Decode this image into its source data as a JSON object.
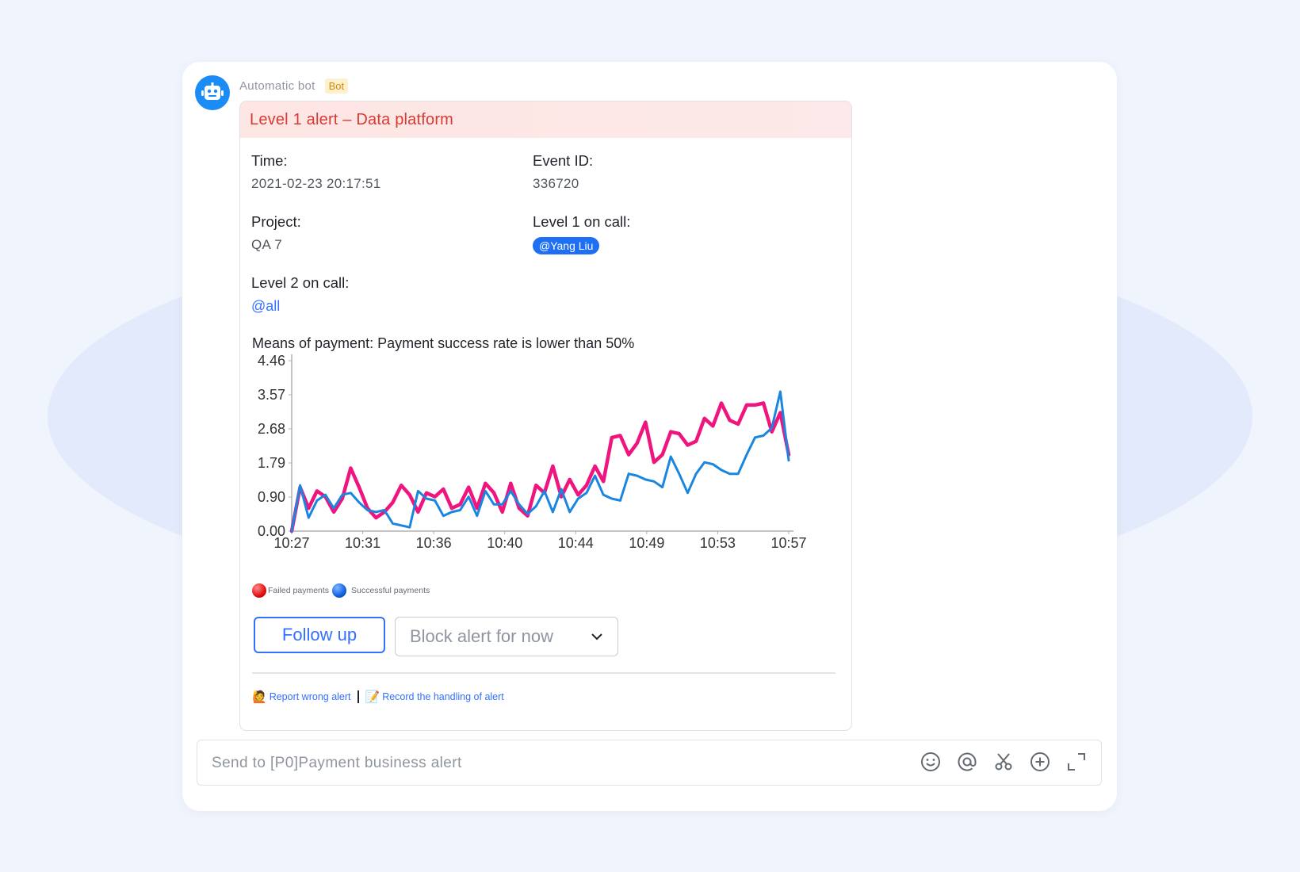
{
  "sender": {
    "name": "Automatic bot",
    "badge": "Bot"
  },
  "card": {
    "header_title": "Level 1 alert – Data platform",
    "fields": {
      "time_label": "Time:",
      "time_value": "2021-02-23 20:17:51",
      "event_id_label": "Event ID:",
      "event_id_value": "336720",
      "project_label": "Project:",
      "project_value": "QA 7",
      "level1_label": "Level 1 on call:",
      "level1_mention": "@Yang Liu",
      "level2_label": "Level 2 on call:",
      "level2_mention": "@all"
    },
    "chart_title": "Means of payment: Payment success rate is lower than 50%",
    "legend": {
      "failed": "Failed payments",
      "successful": "Successful payments"
    },
    "actions": {
      "follow_up": "Follow up",
      "block_alert": "Block alert for now"
    },
    "footer": {
      "report_wrong": "Report wrong alert",
      "record_handling": "Record the handling of alert"
    }
  },
  "input": {
    "placeholder": "Send to [P0]Payment business alert",
    "icons": [
      "smile-icon",
      "at-icon",
      "scissors-icon",
      "add-circle-icon",
      "expand-icon"
    ]
  },
  "colors": {
    "accent": "#3370ff",
    "alert_red": "#d83931",
    "failed_series": "#f0157e",
    "successful_series": "#1a86e0"
  },
  "chart_data": {
    "type": "line",
    "ylim": [
      0,
      4.46
    ],
    "y_ticks": [
      "0.00",
      "0.90",
      "1.79",
      "2.68",
      "3.57",
      "4.46"
    ],
    "x_ticks": [
      "10:27",
      "10:31",
      "10:36",
      "10:40",
      "10:44",
      "10:49",
      "10:53",
      "10:57"
    ],
    "x_range": [
      0,
      60
    ],
    "series": [
      {
        "name": "Failed payments",
        "color": "#f0157e",
        "values": [
          0.0,
          1.15,
          0.6,
          1.05,
          0.9,
          0.5,
          0.85,
          1.65,
          1.15,
          0.6,
          0.35,
          0.5,
          0.75,
          1.2,
          0.95,
          0.5,
          1.0,
          0.9,
          1.1,
          0.6,
          0.7,
          1.15,
          0.6,
          1.25,
          1.0,
          0.5,
          1.25,
          0.6,
          0.4,
          1.2,
          1.0,
          1.7,
          0.9,
          1.35,
          0.95,
          1.2,
          1.7,
          1.3,
          2.45,
          2.5,
          2.0,
          2.3,
          2.85,
          1.8,
          2.0,
          2.6,
          2.55,
          2.25,
          2.35,
          2.95,
          2.75,
          3.35,
          2.9,
          2.8,
          3.3,
          3.3,
          3.35,
          2.6,
          3.1,
          2.0
        ]
      },
      {
        "name": "Successful payments",
        "color": "#1a86e0",
        "values": [
          0.0,
          1.2,
          0.35,
          0.8,
          0.95,
          0.6,
          0.95,
          1.0,
          0.75,
          0.55,
          0.5,
          0.55,
          0.2,
          0.15,
          0.1,
          1.05,
          0.85,
          0.8,
          0.4,
          0.5,
          0.55,
          0.9,
          0.4,
          1.05,
          0.7,
          0.7,
          1.05,
          0.7,
          0.45,
          0.65,
          1.05,
          0.5,
          1.1,
          0.5,
          0.85,
          1.0,
          1.45,
          0.95,
          0.85,
          0.8,
          1.5,
          1.45,
          1.35,
          1.3,
          1.15,
          1.95,
          1.5,
          1.0,
          1.5,
          1.8,
          1.75,
          1.6,
          1.5,
          1.5,
          2.0,
          2.45,
          2.5,
          2.7,
          3.65,
          1.85
        ]
      }
    ]
  }
}
